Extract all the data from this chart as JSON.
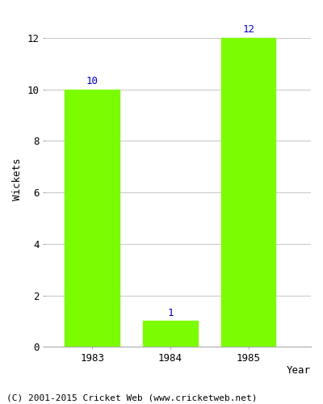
{
  "years": [
    "1983",
    "1984",
    "1985"
  ],
  "values": [
    10,
    1,
    12
  ],
  "bar_color": "#7CFC00",
  "bar_edgecolor": "#7CFC00",
  "label_color": "#0000CD",
  "xlabel": "Year",
  "ylabel": "Wickets",
  "ylim": [
    0,
    13
  ],
  "yticks": [
    0,
    2,
    4,
    6,
    8,
    10,
    12
  ],
  "grid_color": "#cccccc",
  "background_color": "#ffffff",
  "footer_text": "(C) 2001-2015 Cricket Web (www.cricketweb.net)",
  "label_fontsize": 9,
  "axis_label_fontsize": 9,
  "tick_fontsize": 9,
  "footer_fontsize": 8
}
